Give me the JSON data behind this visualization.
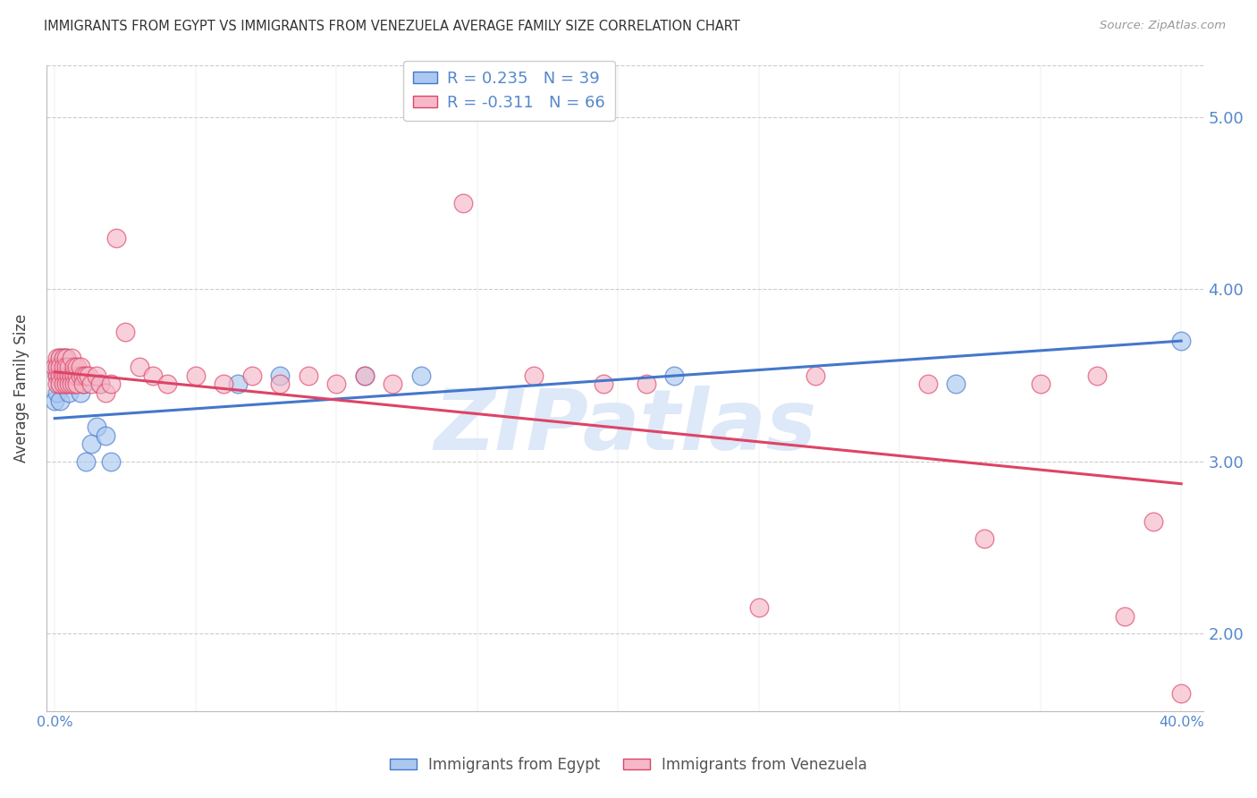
{
  "title": "IMMIGRANTS FROM EGYPT VS IMMIGRANTS FROM VENEZUELA AVERAGE FAMILY SIZE CORRELATION CHART",
  "source_text": "Source: ZipAtlas.com",
  "ylabel": "Average Family Size",
  "y_ticks": [
    2.0,
    3.0,
    4.0,
    5.0
  ],
  "ylim": [
    1.55,
    5.3
  ],
  "xlim": [
    -0.003,
    0.408
  ],
  "R_egypt": 0.235,
  "N_egypt": 39,
  "R_venezuela": -0.311,
  "N_venezuela": 66,
  "egypt_color": "#aac8f0",
  "venezuela_color": "#f5b8c8",
  "egypt_line_color": "#4477cc",
  "venezuela_line_color": "#dd4466",
  "grid_color": "#cccccc",
  "title_color": "#333333",
  "tick_label_color": "#5588cc",
  "source_color": "#999999",
  "background_color": "#ffffff",
  "watermark_text": "ZIPatlas",
  "watermark_color": "#dde8f8",
  "egypt_x": [
    0.0,
    0.001,
    0.001,
    0.001,
    0.002,
    0.002,
    0.002,
    0.002,
    0.003,
    0.003,
    0.003,
    0.003,
    0.004,
    0.004,
    0.004,
    0.004,
    0.005,
    0.005,
    0.005,
    0.006,
    0.006,
    0.007,
    0.007,
    0.008,
    0.009,
    0.01,
    0.011,
    0.013,
    0.015,
    0.016,
    0.018,
    0.02,
    0.065,
    0.08,
    0.11,
    0.13,
    0.22,
    0.32,
    0.4
  ],
  "egypt_y": [
    3.35,
    3.5,
    3.4,
    3.55,
    3.45,
    3.5,
    3.6,
    3.35,
    3.5,
    3.45,
    3.55,
    3.6,
    3.45,
    3.5,
    3.55,
    3.6,
    3.4,
    3.5,
    3.55,
    3.5,
    3.55,
    3.45,
    3.5,
    3.5,
    3.4,
    3.45,
    3.0,
    3.1,
    3.2,
    3.45,
    3.15,
    3.0,
    3.45,
    3.5,
    3.5,
    3.5,
    3.5,
    3.45,
    3.7
  ],
  "venezuela_x": [
    0.0,
    0.001,
    0.001,
    0.001,
    0.001,
    0.002,
    0.002,
    0.002,
    0.002,
    0.003,
    0.003,
    0.003,
    0.003,
    0.004,
    0.004,
    0.004,
    0.004,
    0.005,
    0.005,
    0.005,
    0.006,
    0.006,
    0.006,
    0.007,
    0.007,
    0.007,
    0.008,
    0.008,
    0.008,
    0.009,
    0.009,
    0.01,
    0.01,
    0.011,
    0.012,
    0.013,
    0.015,
    0.016,
    0.018,
    0.02,
    0.022,
    0.025,
    0.03,
    0.035,
    0.04,
    0.05,
    0.06,
    0.07,
    0.08,
    0.09,
    0.1,
    0.11,
    0.12,
    0.145,
    0.17,
    0.195,
    0.21,
    0.25,
    0.27,
    0.31,
    0.33,
    0.35,
    0.37,
    0.38,
    0.39,
    0.4
  ],
  "venezuela_y": [
    3.55,
    3.6,
    3.5,
    3.45,
    3.55,
    3.5,
    3.6,
    3.45,
    3.55,
    3.5,
    3.6,
    3.45,
    3.55,
    3.5,
    3.45,
    3.6,
    3.55,
    3.5,
    3.45,
    3.55,
    3.5,
    3.6,
    3.45,
    3.5,
    3.55,
    3.45,
    3.5,
    3.55,
    3.45,
    3.5,
    3.55,
    3.5,
    3.45,
    3.5,
    3.5,
    3.45,
    3.5,
    3.45,
    3.4,
    3.45,
    4.3,
    3.75,
    3.55,
    3.5,
    3.45,
    3.5,
    3.45,
    3.5,
    3.45,
    3.5,
    3.45,
    3.5,
    3.45,
    4.5,
    3.5,
    3.45,
    3.45,
    2.15,
    3.5,
    3.45,
    2.55,
    3.45,
    3.5,
    2.1,
    2.65,
    1.65
  ]
}
